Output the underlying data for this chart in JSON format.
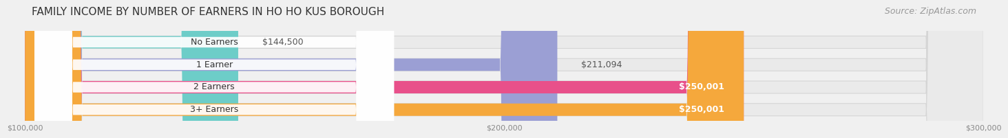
{
  "title": "FAMILY INCOME BY NUMBER OF EARNERS IN HO HO KUS BOROUGH",
  "source": "Source: ZipAtlas.com",
  "categories": [
    "No Earners",
    "1 Earner",
    "2 Earners",
    "3+ Earners"
  ],
  "values": [
    144500,
    211094,
    250001,
    250001
  ],
  "bar_colors": [
    "#6dcdc8",
    "#9b9fd4",
    "#e8508a",
    "#f5a83c"
  ],
  "bg_colors": [
    "#ededee",
    "#ededee",
    "#ededee",
    "#ededee"
  ],
  "value_inside_color": [
    "#555555",
    "#555555",
    "#ffffff",
    "#ffffff"
  ],
  "value_inside": [
    false,
    false,
    true,
    true
  ],
  "xmin": 100000,
  "xmax": 300000,
  "xticks": [
    100000,
    200000,
    300000
  ],
  "xtick_labels": [
    "$100,000",
    "$200,000",
    "$300,000"
  ],
  "title_fontsize": 11,
  "source_fontsize": 9,
  "label_fontsize": 9,
  "value_fontsize": 9,
  "bar_height": 0.55,
  "background_color": "#f0f0f0"
}
